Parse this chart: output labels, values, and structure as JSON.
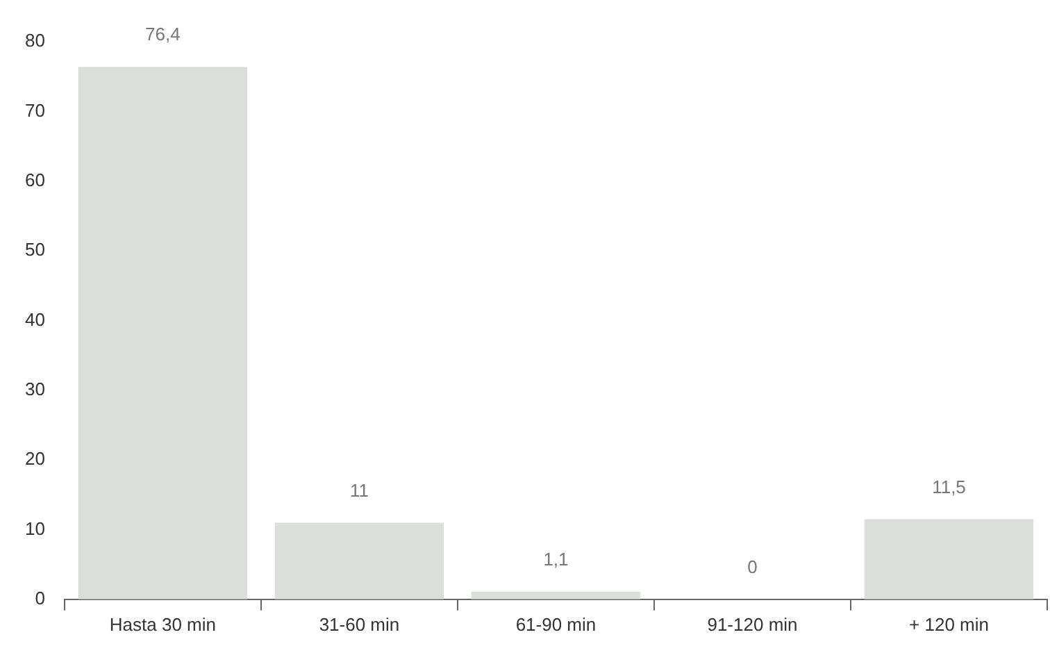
{
  "chart_data": {
    "type": "bar",
    "categories": [
      "Hasta 30 min",
      "31-60 min",
      "61-90 min",
      "91-120 min",
      "+ 120 min"
    ],
    "values": [
      76.4,
      11,
      1.1,
      0,
      11.5
    ],
    "value_labels": [
      "76,4",
      "11",
      "1,1",
      "0",
      "11,5"
    ],
    "color": "#d8e0d8",
    "ylim": [
      0,
      80
    ],
    "yticks": [
      0,
      10,
      20,
      30,
      40,
      50,
      60,
      70,
      80
    ],
    "grid": false,
    "legend": false
  }
}
